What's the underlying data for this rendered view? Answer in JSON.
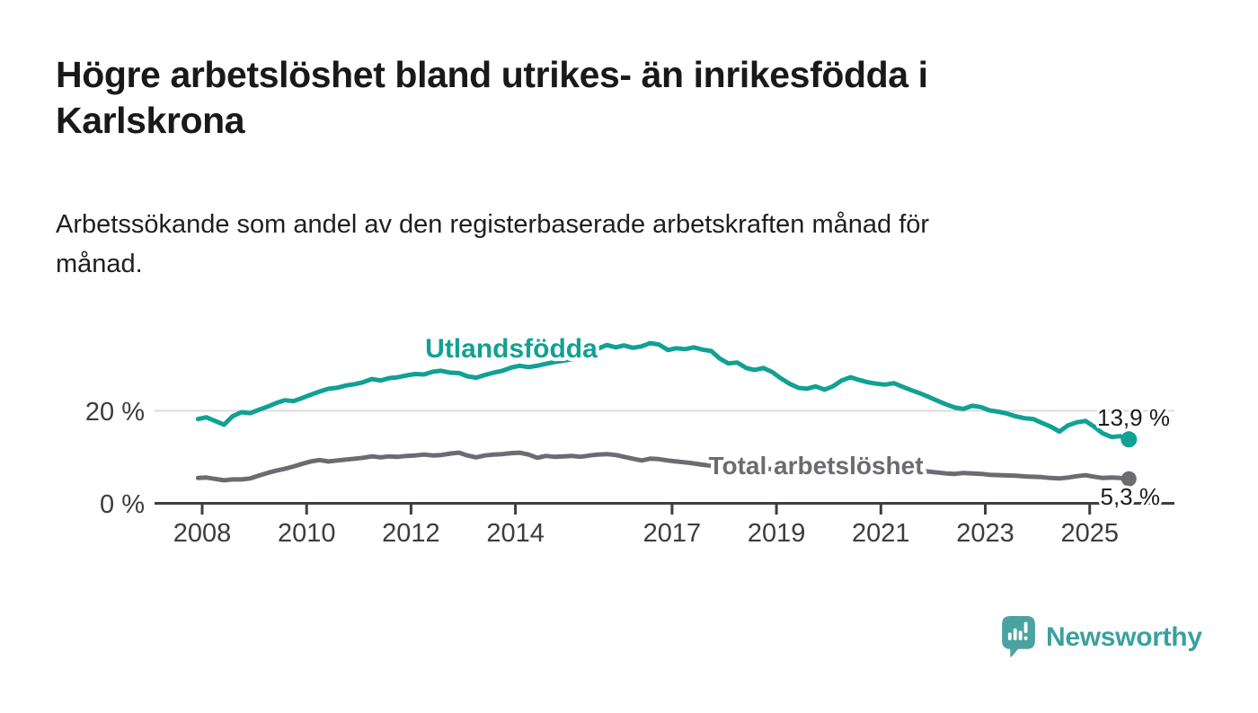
{
  "header": {
    "title_lines": [
      "Högre arbetslöshet bland utrikes- än inrikesfödda i",
      "Karlskrona"
    ],
    "subtitle_lines": [
      "Arbetssökande som andel av den registerbaserade arbetskraften månad för",
      "månad."
    ]
  },
  "footer": {
    "logo_text": "Newsworthy"
  },
  "colors": {
    "series_foreign_born": "#10A194",
    "series_total": "#6E6A72",
    "logo_teal": "#4AA3A1",
    "logo_text_teal": "#3BA19E",
    "axis": "#3f3f3f",
    "gridline": "#dcdcdc",
    "title_text": "#191919",
    "background": "#ffffff"
  },
  "chart_data": {
    "type": "line",
    "unit": "%",
    "x_axis": {
      "ticks": [
        "2008",
        "2010",
        "2012",
        "2014",
        "2017",
        "2019",
        "2021",
        "2023",
        "2025"
      ],
      "tick_years": [
        2008,
        2010,
        2012,
        2014,
        2017,
        2019,
        2021,
        2023,
        2025
      ],
      "range_years": [
        2007.9,
        2026.6
      ]
    },
    "y_axis": {
      "ticks": [
        {
          "value": 0,
          "label": "0 %"
        },
        {
          "value": 20,
          "label": "20 %"
        }
      ],
      "range": [
        0,
        36
      ],
      "gridlines": [
        20
      ]
    },
    "series": [
      {
        "name": "Utlandsfödda",
        "color": "#10A194",
        "end_value": 13.9,
        "end_label": "13,9 %",
        "points": [
          [
            2007.92,
            18.3
          ],
          [
            2008.08,
            18.7
          ],
          [
            2008.25,
            17.9
          ],
          [
            2008.42,
            17.1
          ],
          [
            2008.58,
            18.9
          ],
          [
            2008.75,
            19.8
          ],
          [
            2008.92,
            19.6
          ],
          [
            2009.08,
            20.3
          ],
          [
            2009.25,
            21.0
          ],
          [
            2009.42,
            21.8
          ],
          [
            2009.58,
            22.4
          ],
          [
            2009.75,
            22.2
          ],
          [
            2009.92,
            22.9
          ],
          [
            2010.08,
            23.6
          ],
          [
            2010.25,
            24.3
          ],
          [
            2010.42,
            24.9
          ],
          [
            2010.58,
            25.1
          ],
          [
            2010.75,
            25.6
          ],
          [
            2010.92,
            25.9
          ],
          [
            2011.08,
            26.3
          ],
          [
            2011.25,
            27.0
          ],
          [
            2011.42,
            26.7
          ],
          [
            2011.58,
            27.2
          ],
          [
            2011.75,
            27.4
          ],
          [
            2011.92,
            27.8
          ],
          [
            2012.08,
            28.1
          ],
          [
            2012.25,
            28.0
          ],
          [
            2012.42,
            28.6
          ],
          [
            2012.58,
            28.8
          ],
          [
            2012.75,
            28.4
          ],
          [
            2012.92,
            28.3
          ],
          [
            2013.08,
            27.6
          ],
          [
            2013.25,
            27.3
          ],
          [
            2013.42,
            27.9
          ],
          [
            2013.58,
            28.4
          ],
          [
            2013.75,
            28.8
          ],
          [
            2013.92,
            29.5
          ],
          [
            2014.08,
            29.9
          ],
          [
            2014.25,
            29.6
          ],
          [
            2014.42,
            29.9
          ],
          [
            2014.58,
            30.3
          ],
          [
            2014.75,
            30.7
          ],
          [
            2014.92,
            31.0
          ],
          [
            2015.08,
            31.3
          ],
          [
            2015.25,
            31.8
          ],
          [
            2015.42,
            32.5
          ],
          [
            2015.58,
            33.6
          ],
          [
            2015.75,
            34.4
          ],
          [
            2015.92,
            33.9
          ],
          [
            2016.08,
            34.3
          ],
          [
            2016.25,
            33.8
          ],
          [
            2016.42,
            34.1
          ],
          [
            2016.58,
            34.8
          ],
          [
            2016.75,
            34.5
          ],
          [
            2016.92,
            33.3
          ],
          [
            2017.08,
            33.7
          ],
          [
            2017.25,
            33.5
          ],
          [
            2017.42,
            33.9
          ],
          [
            2017.58,
            33.4
          ],
          [
            2017.75,
            33.1
          ],
          [
            2017.92,
            31.4
          ],
          [
            2018.08,
            30.4
          ],
          [
            2018.25,
            30.6
          ],
          [
            2018.42,
            29.4
          ],
          [
            2018.58,
            29.0
          ],
          [
            2018.75,
            29.4
          ],
          [
            2018.92,
            28.5
          ],
          [
            2019.08,
            27.2
          ],
          [
            2019.25,
            26.0
          ],
          [
            2019.42,
            25.1
          ],
          [
            2019.58,
            24.9
          ],
          [
            2019.75,
            25.4
          ],
          [
            2019.92,
            24.7
          ],
          [
            2020.08,
            25.4
          ],
          [
            2020.25,
            26.7
          ],
          [
            2020.42,
            27.4
          ],
          [
            2020.58,
            26.8
          ],
          [
            2020.75,
            26.3
          ],
          [
            2020.92,
            26.0
          ],
          [
            2021.08,
            25.8
          ],
          [
            2021.25,
            26.1
          ],
          [
            2021.42,
            25.3
          ],
          [
            2021.58,
            24.6
          ],
          [
            2021.75,
            23.9
          ],
          [
            2021.92,
            23.1
          ],
          [
            2022.08,
            22.3
          ],
          [
            2022.25,
            21.5
          ],
          [
            2022.42,
            20.8
          ],
          [
            2022.58,
            20.5
          ],
          [
            2022.75,
            21.2
          ],
          [
            2022.92,
            20.9
          ],
          [
            2023.08,
            20.2
          ],
          [
            2023.25,
            19.9
          ],
          [
            2023.42,
            19.5
          ],
          [
            2023.58,
            18.9
          ],
          [
            2023.75,
            18.5
          ],
          [
            2023.92,
            18.3
          ],
          [
            2024.08,
            17.5
          ],
          [
            2024.25,
            16.7
          ],
          [
            2024.42,
            15.6
          ],
          [
            2024.58,
            16.9
          ],
          [
            2024.75,
            17.6
          ],
          [
            2024.92,
            17.9
          ],
          [
            2025.08,
            16.7
          ],
          [
            2025.25,
            15.2
          ],
          [
            2025.42,
            14.4
          ],
          [
            2025.58,
            14.6
          ],
          [
            2025.75,
            13.9
          ]
        ]
      },
      {
        "name": "Total arbetslöshet",
        "color": "#6E6A72",
        "end_value": 5.3,
        "end_label": "5,3 %",
        "points": [
          [
            2007.92,
            5.5
          ],
          [
            2008.08,
            5.6
          ],
          [
            2008.25,
            5.3
          ],
          [
            2008.42,
            5.0
          ],
          [
            2008.58,
            5.2
          ],
          [
            2008.75,
            5.2
          ],
          [
            2008.92,
            5.4
          ],
          [
            2009.08,
            6.0
          ],
          [
            2009.25,
            6.6
          ],
          [
            2009.42,
            7.1
          ],
          [
            2009.58,
            7.5
          ],
          [
            2009.75,
            8.0
          ],
          [
            2009.92,
            8.6
          ],
          [
            2010.08,
            9.1
          ],
          [
            2010.25,
            9.4
          ],
          [
            2010.42,
            9.1
          ],
          [
            2010.58,
            9.3
          ],
          [
            2010.75,
            9.5
          ],
          [
            2010.92,
            9.7
          ],
          [
            2011.08,
            9.9
          ],
          [
            2011.25,
            10.2
          ],
          [
            2011.42,
            10.0
          ],
          [
            2011.58,
            10.2
          ],
          [
            2011.75,
            10.1
          ],
          [
            2011.92,
            10.3
          ],
          [
            2012.08,
            10.4
          ],
          [
            2012.25,
            10.6
          ],
          [
            2012.42,
            10.4
          ],
          [
            2012.58,
            10.5
          ],
          [
            2012.75,
            10.8
          ],
          [
            2012.92,
            11.0
          ],
          [
            2013.08,
            10.4
          ],
          [
            2013.25,
            10.0
          ],
          [
            2013.42,
            10.4
          ],
          [
            2013.58,
            10.6
          ],
          [
            2013.75,
            10.7
          ],
          [
            2013.92,
            10.9
          ],
          [
            2014.08,
            11.0
          ],
          [
            2014.25,
            10.6
          ],
          [
            2014.42,
            9.9
          ],
          [
            2014.58,
            10.3
          ],
          [
            2014.75,
            10.1
          ],
          [
            2014.92,
            10.2
          ],
          [
            2015.08,
            10.3
          ],
          [
            2015.25,
            10.1
          ],
          [
            2015.42,
            10.4
          ],
          [
            2015.58,
            10.6
          ],
          [
            2015.75,
            10.7
          ],
          [
            2015.92,
            10.5
          ],
          [
            2016.08,
            10.1
          ],
          [
            2016.25,
            9.7
          ],
          [
            2016.42,
            9.3
          ],
          [
            2016.58,
            9.7
          ],
          [
            2016.75,
            9.6
          ],
          [
            2016.92,
            9.3
          ],
          [
            2017.08,
            9.1
          ],
          [
            2017.33,
            8.8
          ],
          [
            2017.58,
            8.4
          ],
          [
            2017.83,
            8.1
          ],
          [
            2018.08,
            7.9
          ],
          [
            2018.33,
            7.8
          ],
          [
            2018.58,
            7.6
          ],
          [
            2018.83,
            7.5
          ],
          [
            2019.08,
            7.3
          ],
          [
            2019.33,
            7.2
          ],
          [
            2019.58,
            7.3
          ],
          [
            2019.83,
            7.6
          ],
          [
            2020.08,
            8.1
          ],
          [
            2020.33,
            8.5
          ],
          [
            2020.58,
            8.6
          ],
          [
            2020.83,
            8.3
          ],
          [
            2021.08,
            7.9
          ],
          [
            2021.33,
            7.6
          ],
          [
            2021.58,
            7.3
          ],
          [
            2021.83,
            7.0
          ],
          [
            2022.08,
            6.7
          ],
          [
            2022.25,
            6.5
          ],
          [
            2022.42,
            6.4
          ],
          [
            2022.58,
            6.6
          ],
          [
            2022.75,
            6.5
          ],
          [
            2022.92,
            6.4
          ],
          [
            2023.08,
            6.2
          ],
          [
            2023.33,
            6.1
          ],
          [
            2023.58,
            6.0
          ],
          [
            2023.83,
            5.8
          ],
          [
            2024.08,
            5.7
          ],
          [
            2024.25,
            5.5
          ],
          [
            2024.42,
            5.4
          ],
          [
            2024.58,
            5.6
          ],
          [
            2024.75,
            5.9
          ],
          [
            2024.92,
            6.1
          ],
          [
            2025.08,
            5.8
          ],
          [
            2025.25,
            5.5
          ],
          [
            2025.42,
            5.6
          ],
          [
            2025.58,
            5.5
          ],
          [
            2025.75,
            5.3
          ]
        ]
      }
    ]
  }
}
